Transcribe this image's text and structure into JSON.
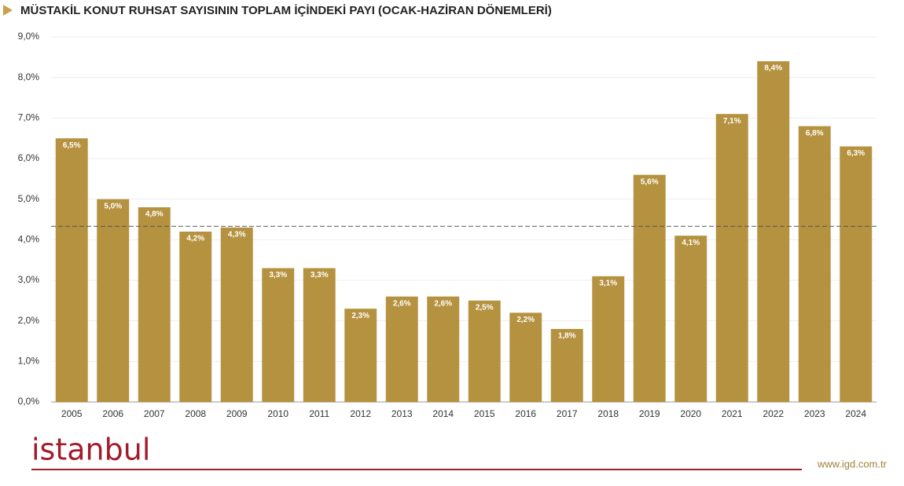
{
  "chart_data": {
    "type": "bar",
    "title": "MÜSTAKİL KONUT RUHSAT SAYISININ TOPLAM İÇİNDEKİ PAYI (OCAK-HAZİRAN DÖNEMLERİ)",
    "categories": [
      "2005",
      "2006",
      "2007",
      "2008",
      "2009",
      "2010",
      "2011",
      "2012",
      "2013",
      "2014",
      "2015",
      "2016",
      "2017",
      "2018",
      "2019",
      "2020",
      "2021",
      "2022",
      "2023",
      "2024"
    ],
    "values": [
      6.5,
      5.0,
      4.8,
      4.2,
      4.3,
      3.3,
      3.3,
      2.3,
      2.6,
      2.6,
      2.5,
      2.2,
      1.8,
      3.1,
      5.6,
      4.1,
      7.1,
      8.4,
      6.8,
      6.3
    ],
    "value_labels": [
      "6,5%",
      "5,0%",
      "4,8%",
      "4,2%",
      "4,3%",
      "3,3%",
      "3,3%",
      "2,3%",
      "2,6%",
      "2,6%",
      "2,5%",
      "2,2%",
      "1,8%",
      "3,1%",
      "5,6%",
      "4,1%",
      "7,1%",
      "8,4%",
      "6,8%",
      "6,3%"
    ],
    "color": "#b5923f",
    "ylim": [
      0,
      9
    ],
    "yticks": [
      {
        "value": 0,
        "label": "0,0%"
      },
      {
        "value": 1,
        "label": "1,0%"
      },
      {
        "value": 2,
        "label": "2,0%"
      },
      {
        "value": 3,
        "label": "3,0%"
      },
      {
        "value": 4,
        "label": "4,0%"
      },
      {
        "value": 5,
        "label": "5,0%"
      },
      {
        "value": 6,
        "label": "6,0%"
      },
      {
        "value": 7,
        "label": "7,0%"
      },
      {
        "value": 8,
        "label": "8,0%"
      },
      {
        "value": 9,
        "label": "9,0%"
      }
    ],
    "grid": true,
    "mean_line": 4.33,
    "logo": "istanbul",
    "source": "www.igd.com.tr"
  }
}
